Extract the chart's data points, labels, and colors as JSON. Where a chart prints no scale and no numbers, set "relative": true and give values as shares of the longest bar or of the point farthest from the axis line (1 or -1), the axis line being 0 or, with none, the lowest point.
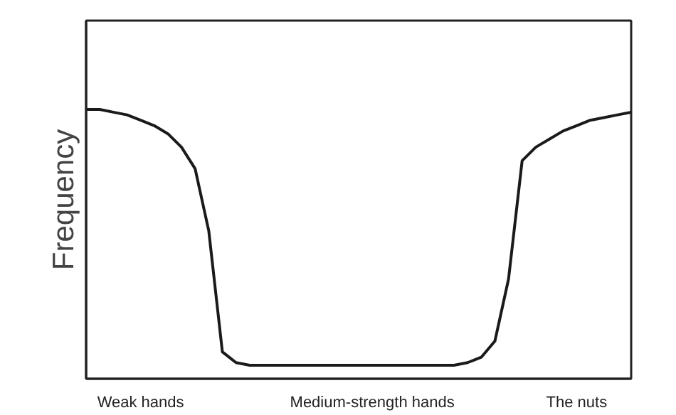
{
  "chart_data": {
    "type": "line",
    "relative": true,
    "ylabel": "Frequency",
    "categories": [
      null,
      null,
      null,
      null,
      "Weak hands",
      null,
      null,
      null,
      null,
      null,
      null,
      null,
      null,
      null,
      null,
      null,
      null,
      null,
      null,
      null,
      null,
      "Medium-strength hands",
      null,
      null,
      null,
      null,
      null,
      null,
      null,
      null,
      null,
      null,
      null,
      null,
      null,
      null,
      "The nuts",
      null,
      null,
      null,
      null
    ],
    "series": [
      {
        "color": "#1a1a1a",
        "values": [
          1.0,
          1.0,
          0.99,
          0.98,
          0.96,
          0.94,
          0.91,
          0.86,
          0.78,
          0.55,
          0.1,
          0.06,
          0.05,
          0.05,
          0.05,
          0.05,
          0.05,
          0.05,
          0.05,
          0.05,
          0.05,
          0.05,
          0.05,
          0.05,
          0.05,
          0.05,
          0.05,
          0.05,
          0.06,
          0.08,
          0.14,
          0.37,
          0.81,
          0.86,
          0.89,
          0.92,
          0.94,
          0.96,
          0.97,
          0.98,
          0.99
        ]
      }
    ],
    "grid": false,
    "marker": "none",
    "line_style": "solid",
    "tick_labels": "x"
  }
}
